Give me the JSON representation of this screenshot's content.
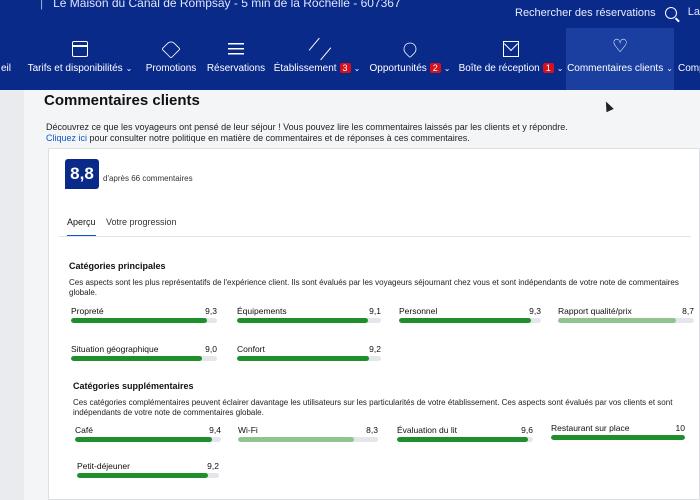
{
  "header": {
    "property_line": "Le Maison du Canal de Rompsay - 5 min de la Rochelle - 607367",
    "search_placeholder": "Rechercher des réservations",
    "lang_partial": "La"
  },
  "nav": [
    {
      "id": "nav-partial-left",
      "label": "eil",
      "icon": "",
      "badge": null,
      "chevron": false
    },
    {
      "id": "nav-tarifs",
      "label": "Tarifs et disponibilités",
      "icon": "calendar-icon",
      "badge": null,
      "chevron": true
    },
    {
      "id": "nav-promotions",
      "label": "Promotions",
      "icon": "tag-icon",
      "badge": null,
      "chevron": false
    },
    {
      "id": "nav-reservations",
      "label": "Réservations",
      "icon": "list-icon",
      "badge": null,
      "chevron": false
    },
    {
      "id": "nav-etablissement",
      "label": "Établissement",
      "icon": "pen-icon",
      "badge": "3",
      "chevron": true
    },
    {
      "id": "nav-opportunites",
      "label": "Opportunités",
      "icon": "rocket-icon",
      "badge": "2",
      "chevron": true
    },
    {
      "id": "nav-boite",
      "label": "Boîte de réception",
      "icon": "mail-icon",
      "badge": "1",
      "chevron": true
    },
    {
      "id": "nav-commentaires",
      "label": "Commentaires clients",
      "icon": "heart-icon",
      "badge": null,
      "chevron": true
    },
    {
      "id": "nav-partial-right",
      "label": "Comp",
      "icon": "",
      "badge": null,
      "chevron": false
    }
  ],
  "page": {
    "title": "Commentaires clients",
    "intro": "Découvrez ce que les voyageurs ont pensé de leur séjour ! Vous pouvez lire les commentaires laissés par les clients et y répondre.",
    "link": "Cliquez ici",
    "intro_rest": " pour consulter notre politique en matière de commentaires et de réponses à ces commentaires."
  },
  "score": {
    "value": "8,8",
    "subtitle": "d'après 66 commentaires"
  },
  "tabs": [
    {
      "label": "Aperçu",
      "active": true
    },
    {
      "label": "Votre progression",
      "active": false
    }
  ],
  "main_categories": {
    "title": "Catégories principales",
    "description": "Ces aspects sont les plus représentatifs de l'expérience client. Ils sont évalués par les voyageurs séjournant chez vous et sont indépendants de votre note de commentaires globale.",
    "items": [
      {
        "label": "Propreté",
        "value": "9,3",
        "score": 9.3
      },
      {
        "label": "Équipements",
        "value": "9,1",
        "score": 9.1
      },
      {
        "label": "Personnel",
        "value": "9,3",
        "score": 9.3
      },
      {
        "label": "Rapport qualité/prix",
        "value": "8,7",
        "score": 8.7
      },
      {
        "label": "Situation géographique",
        "value": "9,0",
        "score": 9.0
      },
      {
        "label": "Confort",
        "value": "9,2",
        "score": 9.2
      }
    ]
  },
  "extra_categories": {
    "title": "Catégories supplémentaires",
    "description": "Ces catégories complémentaires peuvent éclairer davantage les utilisateurs sur les particularités de votre établissement. Ces aspects sont évalués par vos clients et sont indépendants de votre note de commentaires globale.",
    "items": [
      {
        "label": "Café",
        "value": "9,4",
        "score": 9.4
      },
      {
        "label": "Wi-Fi",
        "value": "8,3",
        "score": 8.3
      },
      {
        "label": "Évaluation du lit",
        "value": "9,6",
        "score": 9.6
      },
      {
        "label": "Restaurant sur place",
        "value": "10",
        "score": 10
      },
      {
        "label": "Petit-déjeuner",
        "value": "9,2",
        "score": 9.2
      }
    ]
  },
  "colors": {
    "header_bg": "#0a2a8a",
    "bar_good": "#1f8f2c",
    "bar_light": "#8fc48f",
    "link": "#0a58c9",
    "badge": "#d4111e"
  }
}
